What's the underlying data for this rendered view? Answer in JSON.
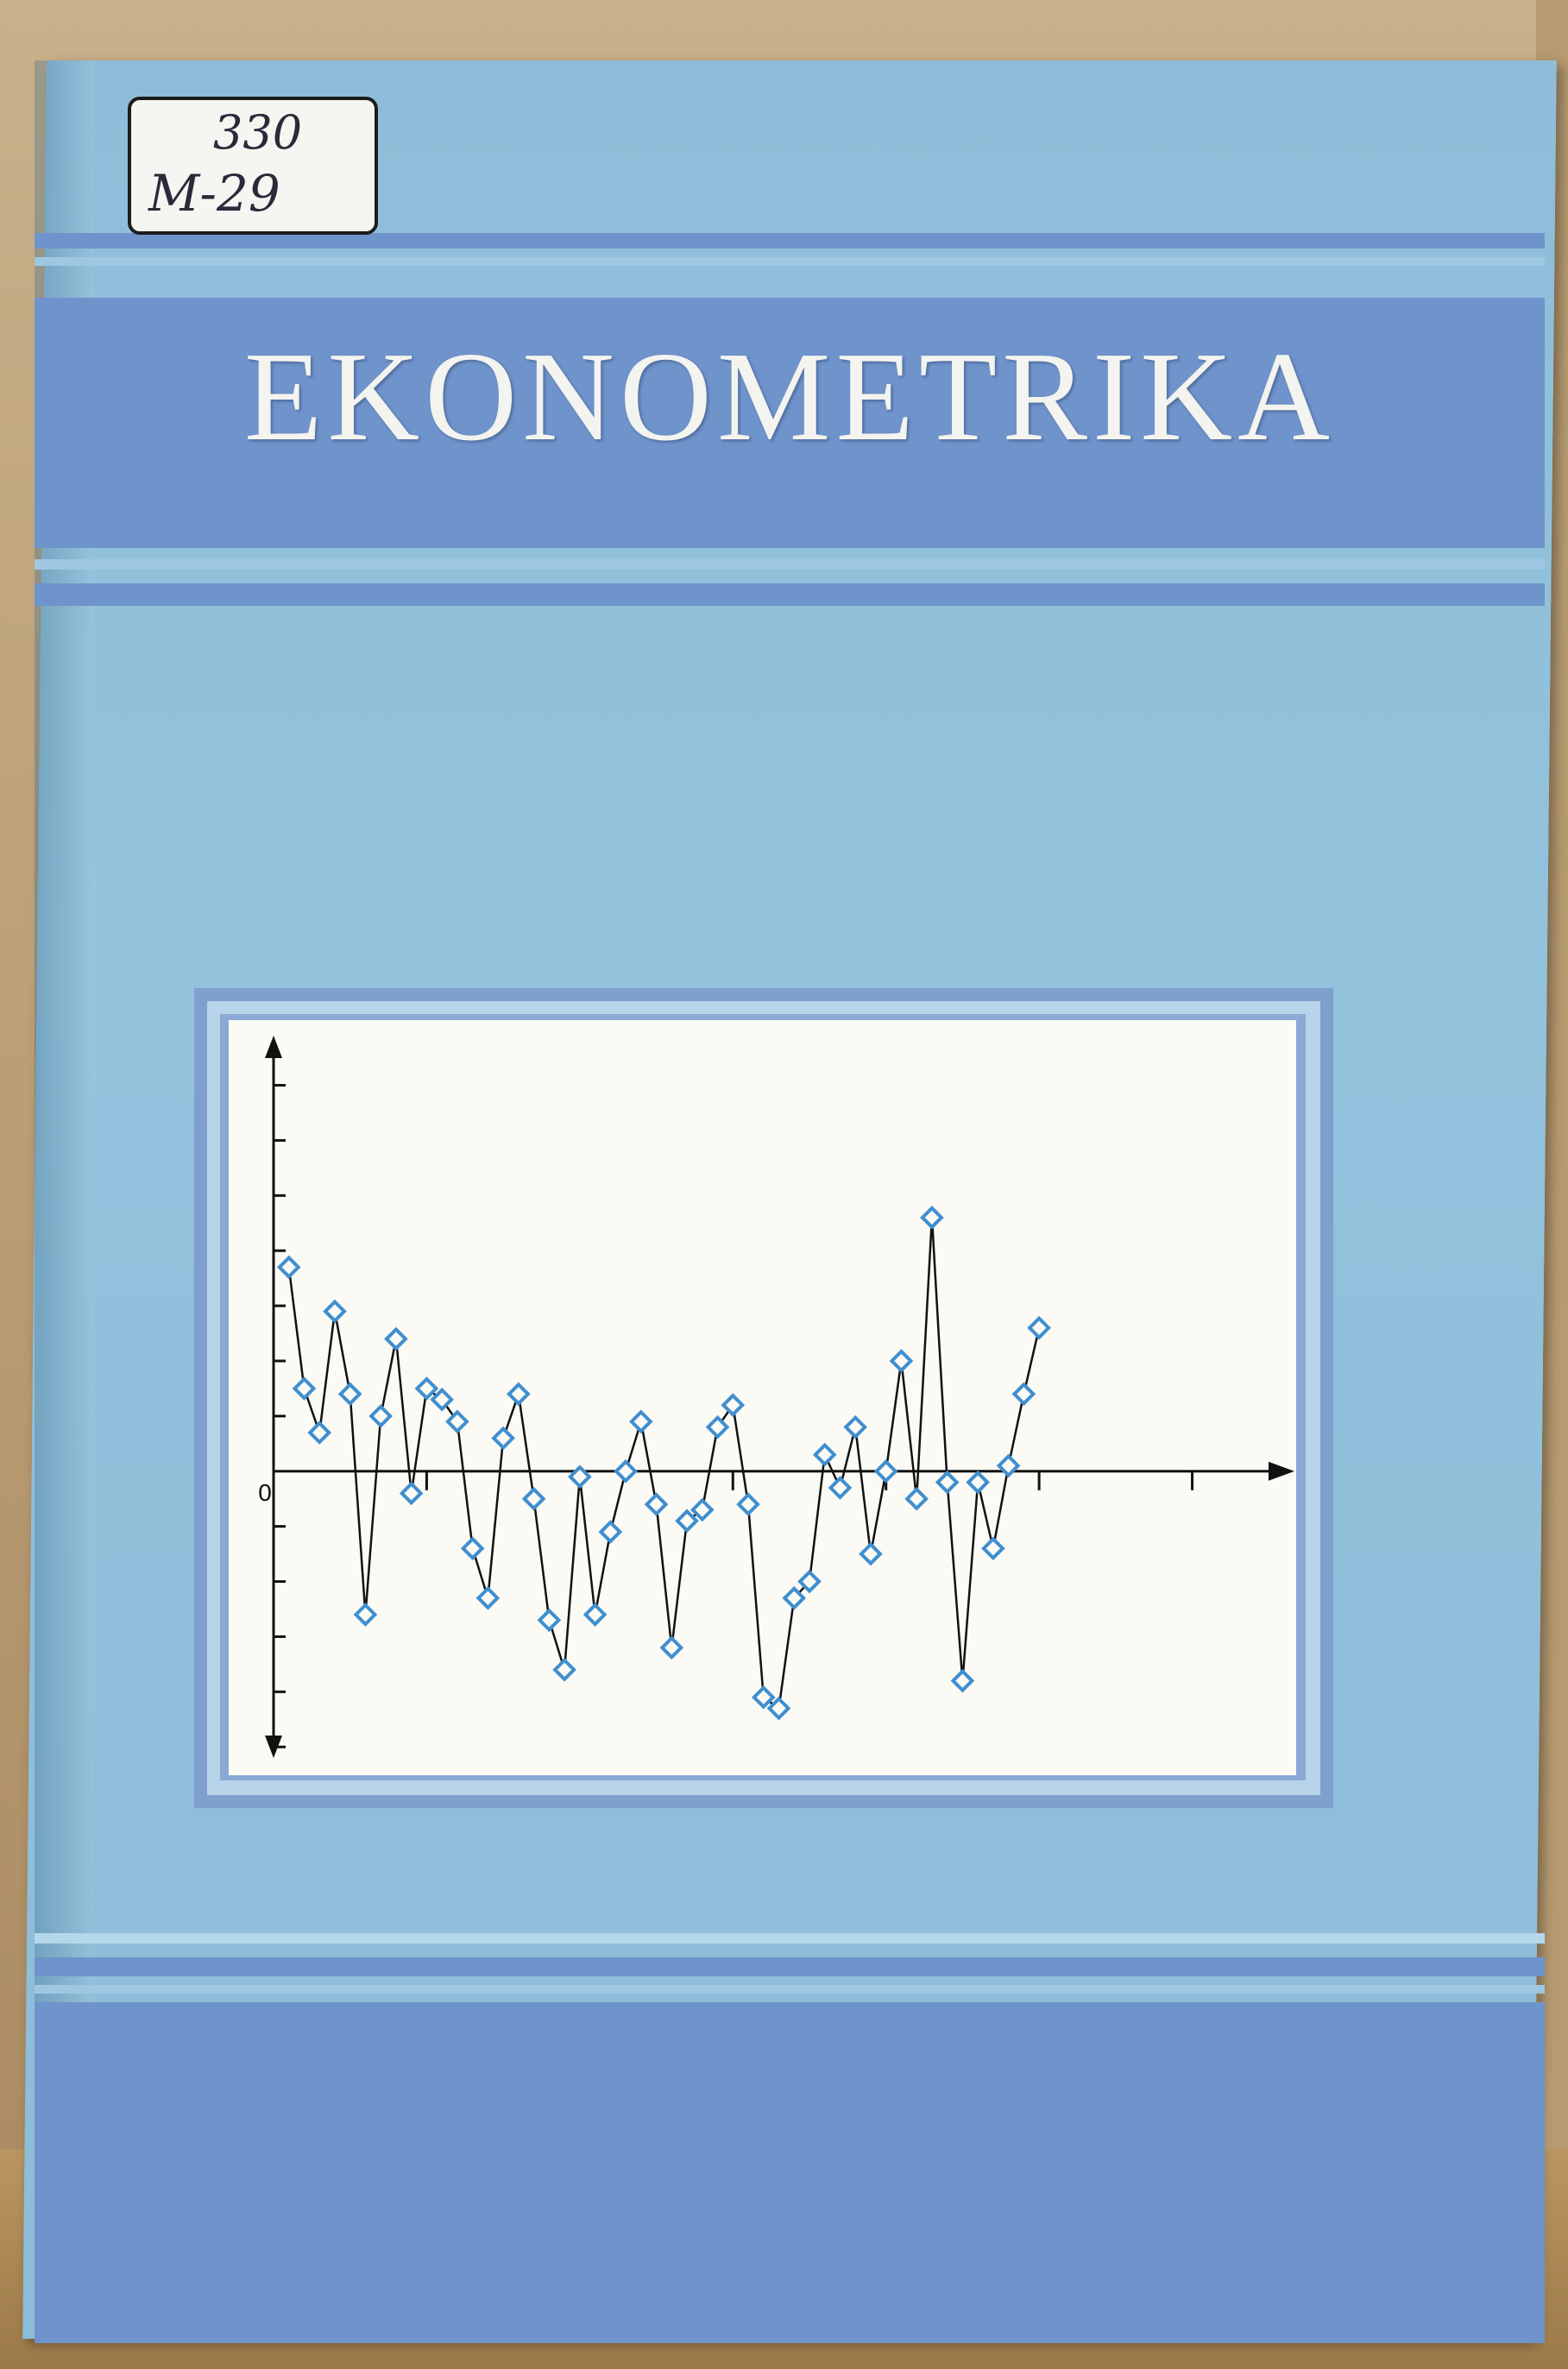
{
  "cover": {
    "title": "EKONOMETRIKA"
  },
  "library_label": {
    "line1": "330",
    "line2": "M-29"
  },
  "colors": {
    "cover_background": "#8fbdd9",
    "band": "#6f93cb",
    "chart_background": "#fbfaf4",
    "marker": "#3f8fd0",
    "title_text": "#f3f3ef"
  },
  "chart_data": {
    "type": "line",
    "title": "",
    "xlabel": "",
    "ylabel": "",
    "y_axis_tick_labels": [
      "0"
    ],
    "x": [
      1,
      2,
      3,
      4,
      5,
      6,
      7,
      8,
      9,
      10,
      11,
      12,
      13,
      14,
      15,
      16,
      17,
      18,
      19,
      20,
      21,
      22,
      23,
      24,
      25,
      26,
      27,
      28,
      29,
      30,
      31,
      32,
      33,
      34,
      35,
      36,
      37,
      38,
      39,
      40,
      41,
      42,
      43,
      44,
      45,
      46,
      47,
      48,
      49,
      50
    ],
    "values": [
      3.7,
      1.5,
      0.7,
      2.9,
      1.4,
      -2.6,
      1.0,
      2.4,
      -0.4,
      1.5,
      1.3,
      0.9,
      -1.4,
      -2.3,
      0.6,
      1.4,
      -0.5,
      -2.7,
      -3.6,
      -0.1,
      -2.6,
      -1.1,
      0.0,
      0.9,
      -0.6,
      -3.2,
      -0.9,
      -0.7,
      0.8,
      1.2,
      -0.6,
      -4.1,
      -4.3,
      -2.3,
      -2.0,
      0.3,
      -0.3,
      0.8,
      -1.5,
      0.0,
      2.0,
      -0.5,
      4.6,
      -0.2,
      -3.8,
      -0.2,
      -1.4,
      0.1,
      1.4,
      2.6
    ],
    "ylim": [
      -5.2,
      7.9
    ],
    "xlim": [
      0,
      66
    ],
    "grid": false,
    "marker": "diamond"
  }
}
